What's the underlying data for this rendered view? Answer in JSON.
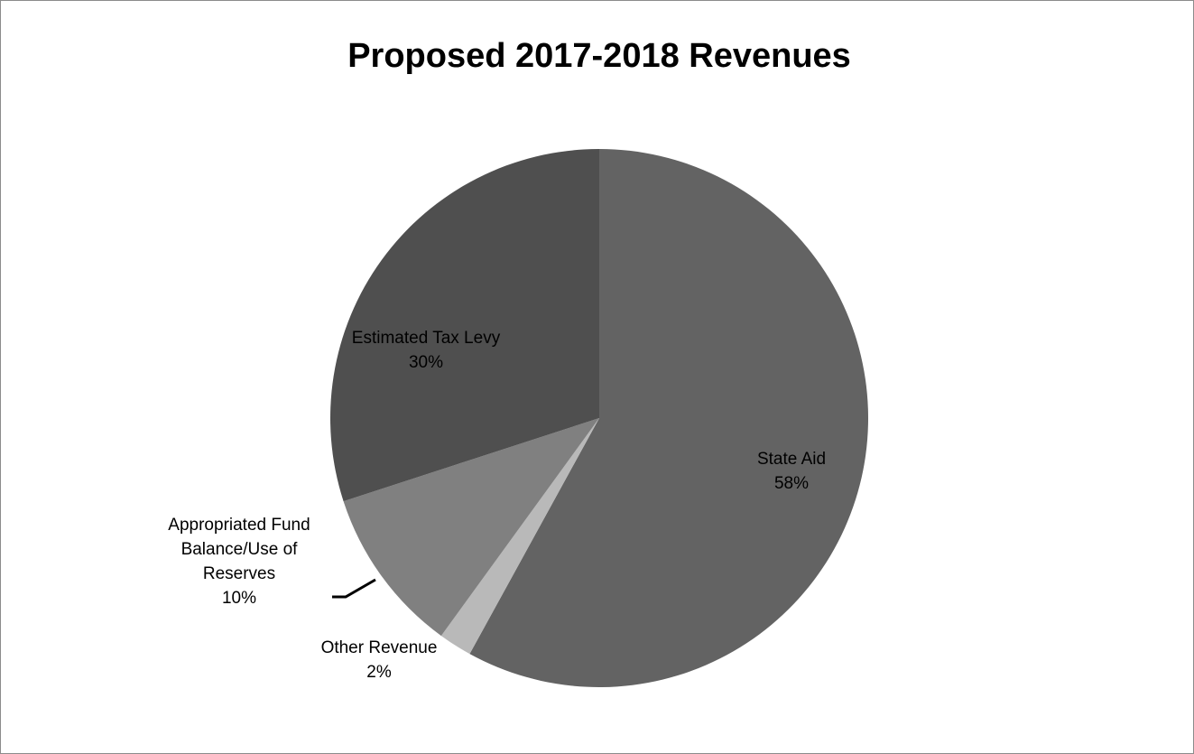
{
  "chart_data": {
    "type": "pie",
    "title": "Proposed 2017-2018 Revenues",
    "slices": [
      {
        "name": "State Aid",
        "label_lines": [
          "State Aid"
        ],
        "percent_label": "58%",
        "value": 58,
        "color": "#636363"
      },
      {
        "name": "Other Revenue",
        "label_lines": [
          "Other Revenue"
        ],
        "percent_label": "2%",
        "value": 2,
        "color": "#b9b9b9"
      },
      {
        "name": "Appropriated Fund Balance/Use of Reserves",
        "label_lines": [
          "Appropriated Fund",
          "Balance/Use of",
          "Reserves"
        ],
        "percent_label": "10%",
        "value": 10,
        "color": "#808080"
      },
      {
        "name": "Estimated Tax Levy",
        "label_lines": [
          "Estimated Tax Levy"
        ],
        "percent_label": "30%",
        "value": 30,
        "color": "#4f4f4f"
      }
    ],
    "start_angle": "12 o'clock",
    "direction": "clockwise",
    "legend": "none"
  }
}
